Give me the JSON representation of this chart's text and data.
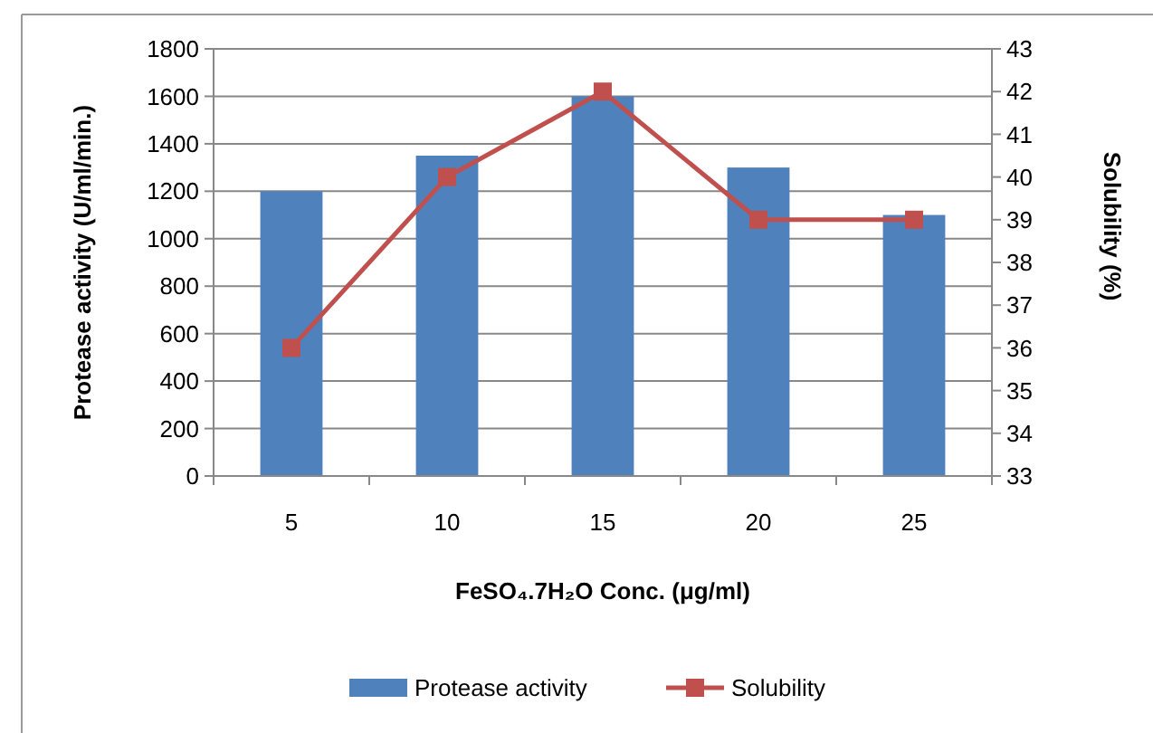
{
  "chart_data": {
    "type": "bar",
    "xlabel": "FeSO₄.7H₂O Conc. (μg/ml)",
    "ylabel": "Protease activity (U/ml/min.)",
    "y2label": "Solubility (%)",
    "categories": [
      "5",
      "10",
      "15",
      "20",
      "25"
    ],
    "series": [
      {
        "name": "Protease activity",
        "color": "#4f81bd",
        "values": [
          1200,
          1350,
          1600,
          1300,
          1100
        ]
      },
      {
        "name": "Solubility",
        "type": "line",
        "axis": "y2",
        "color": "#c0504d",
        "marker": "square",
        "values": [
          36,
          40,
          42,
          39,
          39
        ]
      }
    ],
    "ylim": [
      0,
      1800
    ],
    "yticks": [
      0,
      200,
      400,
      600,
      800,
      1000,
      1200,
      1400,
      1600,
      1800
    ],
    "y2lim": [
      33,
      43
    ],
    "y2ticks": [
      33,
      34,
      35,
      36,
      37,
      38,
      39,
      40,
      41,
      42,
      43
    ],
    "grid": "y",
    "legend": "bottom"
  }
}
